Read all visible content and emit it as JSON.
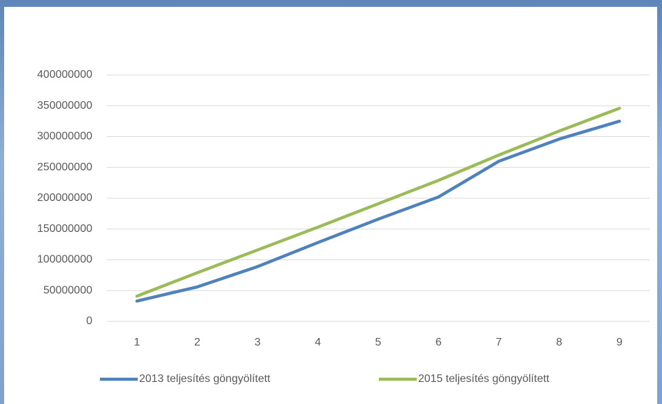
{
  "chart_data": {
    "type": "line",
    "categories": [
      "1",
      "2",
      "3",
      "4",
      "5",
      "6",
      "7",
      "8",
      "9"
    ],
    "series": [
      {
        "name": "2013 teljesítés göngyölített",
        "color": "#4f81bd",
        "values": [
          33000000,
          56000000,
          89000000,
          128000000,
          166000000,
          202000000,
          260000000,
          296000000,
          325000000
        ]
      },
      {
        "name": "2015 teljesítés göngyölített",
        "color": "#9bbb59",
        "values": [
          41000000,
          79000000,
          116000000,
          153000000,
          191000000,
          229000000,
          270000000,
          309000000,
          346000000
        ]
      }
    ],
    "ylim": [
      0,
      400000000
    ],
    "yticks": [
      0,
      50000000,
      100000000,
      150000000,
      200000000,
      250000000,
      300000000,
      350000000,
      400000000
    ],
    "grid": true,
    "legend": "bottom"
  }
}
